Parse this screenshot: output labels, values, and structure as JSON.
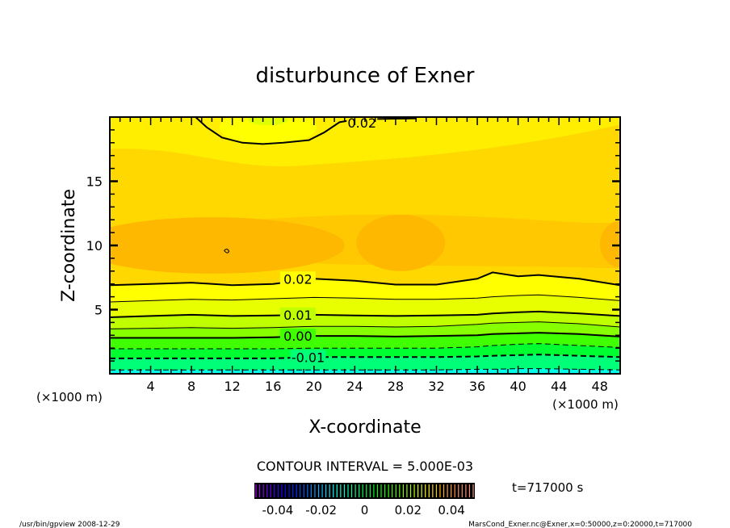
{
  "chart_data": {
    "type": "contour",
    "title": "disturbunce of Exner",
    "xlabel": "X-coordinate",
    "ylabel": "Z-coordinate",
    "x_unit": "(×1000 m)",
    "y_unit": "(×1000 m)",
    "xlim": [
      0,
      50
    ],
    "ylim": [
      0,
      20
    ],
    "xticks": [
      "4",
      "8",
      "12",
      "16",
      "20",
      "24",
      "28",
      "32",
      "36",
      "40",
      "44",
      "48"
    ],
    "xtick_values": [
      4,
      8,
      12,
      16,
      20,
      24,
      28,
      32,
      36,
      40,
      44,
      48
    ],
    "yticks": [
      "5",
      "10",
      "15"
    ],
    "ytick_values": [
      5,
      10,
      15
    ],
    "contour_interval": "CONTOUR INTERVAL = 5.000E-03",
    "time_label": "t=717000 s",
    "x_sample": [
      0,
      4,
      8,
      12,
      16,
      20,
      24,
      28,
      32,
      36,
      37.5,
      40,
      42,
      46,
      50
    ],
    "contours": [
      {
        "level": -0.015,
        "style": "dashed",
        "z": [
          0.3,
          0.3,
          0.3,
          0.3,
          0.3,
          0.3,
          0.3,
          0.3,
          0.3,
          0.35,
          0.35,
          0.4,
          0.4,
          0.35,
          0.3
        ]
      },
      {
        "level": -0.01,
        "style": "dashed",
        "label": "-0.01",
        "label_x": 18,
        "z": [
          1.2,
          1.2,
          1.2,
          1.2,
          1.2,
          1.3,
          1.3,
          1.3,
          1.3,
          1.35,
          1.4,
          1.45,
          1.5,
          1.4,
          1.3
        ]
      },
      {
        "level": -0.005,
        "style": "dashed",
        "z": [
          1.95,
          1.95,
          1.95,
          1.95,
          1.95,
          2.0,
          2.0,
          2.0,
          2.0,
          2.1,
          2.2,
          2.3,
          2.35,
          2.2,
          2.05
        ]
      },
      {
        "level": 0.0,
        "style": "solid",
        "label": "0.00",
        "label_x": 17,
        "z": [
          2.8,
          2.8,
          2.8,
          2.8,
          2.85,
          2.95,
          2.95,
          2.9,
          2.95,
          3.0,
          3.1,
          3.15,
          3.2,
          3.1,
          2.9
        ]
      },
      {
        "level": 0.005,
        "style": "thin",
        "z": [
          3.5,
          3.55,
          3.6,
          3.55,
          3.6,
          3.7,
          3.7,
          3.65,
          3.7,
          3.85,
          3.95,
          4.0,
          4.05,
          3.9,
          3.65
        ]
      },
      {
        "level": 0.01,
        "style": "solid",
        "label": "0.01",
        "label_x": 17,
        "z": [
          4.4,
          4.5,
          4.6,
          4.5,
          4.55,
          4.6,
          4.55,
          4.5,
          4.55,
          4.6,
          4.7,
          4.8,
          4.85,
          4.7,
          4.5
        ]
      },
      {
        "level": 0.015,
        "style": "thin",
        "z": [
          5.6,
          5.7,
          5.8,
          5.75,
          5.85,
          5.95,
          5.9,
          5.8,
          5.8,
          5.9,
          6.0,
          6.1,
          6.15,
          5.95,
          5.7
        ]
      },
      {
        "level": 0.02,
        "style": "solid",
        "label": "0.02",
        "label_x": 17,
        "z": [
          6.9,
          7.0,
          7.1,
          6.9,
          7.0,
          7.4,
          7.25,
          6.95,
          6.95,
          7.4,
          7.9,
          7.6,
          7.7,
          7.4,
          6.9
        ]
      }
    ],
    "upper_contour": {
      "level": 0.02,
      "label": "0.02",
      "x": [
        8.4,
        9.5,
        11,
        13,
        15,
        17,
        19.5,
        21,
        22.5,
        24,
        26,
        30
      ],
      "z": [
        20,
        19.2,
        18.4,
        18.0,
        17.9,
        18.0,
        18.2,
        18.8,
        19.6,
        19.8,
        19.85,
        19.9
      ]
    },
    "colorbar": {
      "range": [
        -0.05,
        0.05
      ],
      "ticks": [
        "-0.04",
        "-0.02",
        "0",
        "0.02",
        "0.04"
      ],
      "tick_values": [
        -0.04,
        -0.02,
        0,
        0.02,
        0.04
      ]
    },
    "band_colors": [
      "#00ffe8",
      "#00ffb0",
      "#00ff78",
      "#00ff30",
      "#40ff00",
      "#88ff00",
      "#c0ff00",
      "#e8ff00",
      "#ffff00"
    ],
    "upper_colors": {
      "light": "#ffee00",
      "mid": "#ffd800",
      "deep": "#ffc800",
      "deepest": "#ffb800",
      "topband": "#ffff00",
      "core": "#e0ff00"
    }
  },
  "footer": {
    "left": "/usr/bin/gpview   2008-12-29",
    "right": "MarsCond_Exner.nc@Exner,x=0:50000,z=0:20000,t=717000"
  }
}
